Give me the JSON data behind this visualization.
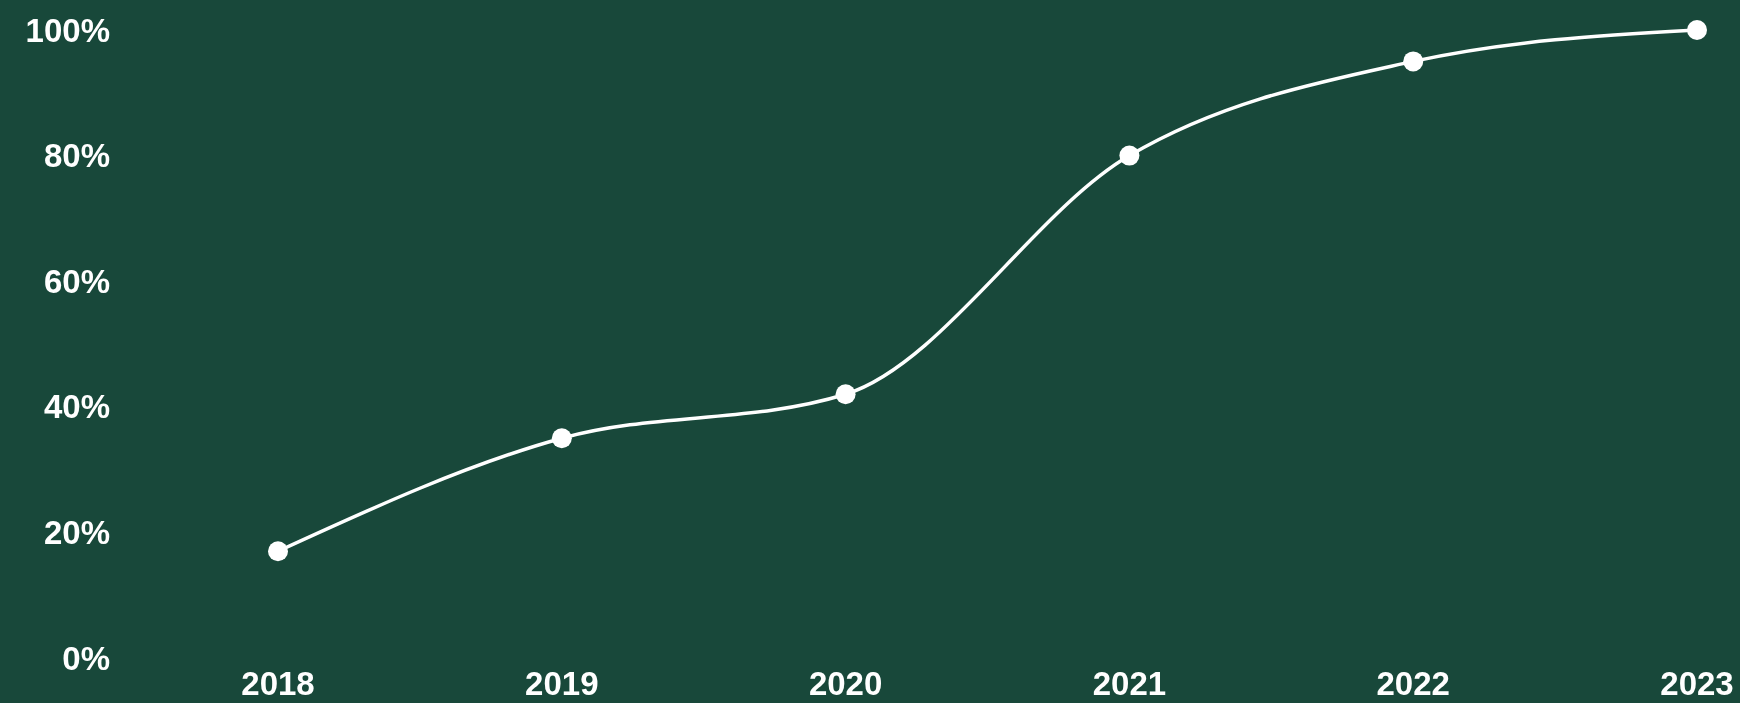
{
  "chart_data": {
    "type": "line",
    "categories": [
      "2018",
      "2019",
      "2020",
      "2021",
      "2022",
      "2023"
    ],
    "series": [
      {
        "color": "#ffffff",
        "values": [
          17,
          35,
          42,
          80,
          95,
          100
        ]
      }
    ],
    "ylim": [
      0,
      100
    ],
    "yticks": [
      {
        "value": 0,
        "label": "0%"
      },
      {
        "value": 20,
        "label": "20%"
      },
      {
        "value": 40,
        "label": "40%"
      },
      {
        "value": 60,
        "label": "60%"
      },
      {
        "value": 80,
        "label": "80%"
      },
      {
        "value": 100,
        "label": "100%"
      }
    ],
    "marker": "circle",
    "line_style": "solid",
    "grid": false
  }
}
